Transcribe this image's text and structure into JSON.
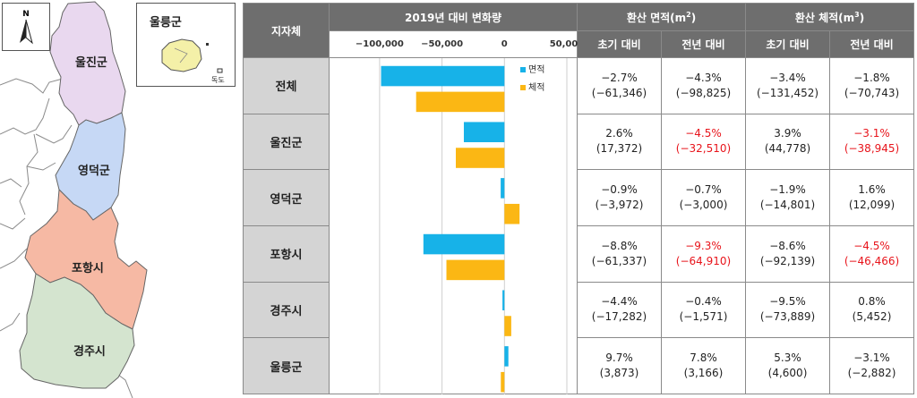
{
  "map": {
    "inset_title": "울릉군",
    "dokdo_label": "독도",
    "north_label": "N",
    "regions": [
      {
        "name": "울진군",
        "color": "#e9d8ef"
      },
      {
        "name": "영덕군",
        "color": "#c6d8f5"
      },
      {
        "name": "포항시",
        "color": "#f6b9a4"
      },
      {
        "name": "경주시",
        "color": "#d4e4cf"
      }
    ],
    "ulleung_color": "#f4f0a8"
  },
  "table": {
    "header": {
      "region": "지자체",
      "change_title": "2019년 대비 변화량",
      "area_title": "환산 면적(m",
      "area_sup": "2",
      "volume_title": "환산 체적(m",
      "volume_sup": "3",
      "area_initial": "초기 대비",
      "area_prev": "전년 대비",
      "volume_initial": "초기 대비",
      "volume_prev": "전년 대비"
    },
    "rows": [
      {
        "region": "전체",
        "area_initial_pct": "−2.7%",
        "area_initial_val": "(−61,346)",
        "area_prev_pct": "−4.3%",
        "area_prev_val": "(−98,825)",
        "volume_initial_pct": "−3.4%",
        "volume_initial_val": "(−131,452)",
        "volume_prev_pct": "−1.8%",
        "volume_prev_val": "(−70,743)"
      },
      {
        "region": "울진군",
        "area_initial_pct": "2.6%",
        "area_initial_val": "(17,372)",
        "area_prev_pct": "−4.5%",
        "area_prev_val": "(−32,510)",
        "volume_initial_pct": "3.9%",
        "volume_initial_val": "(44,778)",
        "volume_prev_pct": "−3.1%",
        "volume_prev_val": "(−38,945)"
      },
      {
        "region": "영덕군",
        "area_initial_pct": "−0.9%",
        "area_initial_val": "(−3,972)",
        "area_prev_pct": "−0.7%",
        "area_prev_val": "(−3,000)",
        "volume_initial_pct": "−1.9%",
        "volume_initial_val": "(−14,801)",
        "volume_prev_pct": "1.6%",
        "volume_prev_val": "(12,099)"
      },
      {
        "region": "포항시",
        "area_initial_pct": "−8.8%",
        "area_initial_val": "(−61,337)",
        "area_prev_pct": "−9.3%",
        "area_prev_val": "(−64,910)",
        "volume_initial_pct": "−8.6%",
        "volume_initial_val": "(−92,139)",
        "volume_prev_pct": "−4.5%",
        "volume_prev_val": "(−46,466)"
      },
      {
        "region": "경주시",
        "area_initial_pct": "−4.4%",
        "area_initial_val": "(−17,282)",
        "area_prev_pct": "−0.4%",
        "area_prev_val": "(−1,571)",
        "volume_initial_pct": "−9.5%",
        "volume_initial_val": "(−73,889)",
        "volume_prev_pct": "0.8%",
        "volume_prev_val": "(5,452)"
      },
      {
        "region": "울릉군",
        "area_initial_pct": "9.7%",
        "area_initial_val": "(3,873)",
        "area_prev_pct": "7.8%",
        "area_prev_val": "(3,166)",
        "volume_initial_pct": "5.3%",
        "volume_initial_val": "(4,600)",
        "volume_prev_pct": "−3.1%",
        "volume_prev_val": "(−2,882)"
      }
    ]
  },
  "highlight_color": "#e8141b",
  "chart_data": {
    "type": "bar",
    "orientation": "horizontal",
    "title": "2019년 대비 변화량",
    "categories": [
      "전체",
      "울진군",
      "영덕군",
      "포항시",
      "경주시",
      "울릉군"
    ],
    "series": [
      {
        "name": "면적",
        "color": "#17b2e8",
        "values": [
          -98825,
          -32510,
          -3000,
          -64910,
          -1571,
          3166
        ]
      },
      {
        "name": "체적",
        "color": "#fbb714",
        "values": [
          -70743,
          -38945,
          12099,
          -46466,
          5452,
          -2882
        ]
      }
    ],
    "xlim": [
      -120000,
      50000
    ],
    "ticks": [
      -100000,
      -50000,
      0,
      50000
    ],
    "tick_labels": [
      "−100,000",
      "−50,000",
      "0",
      "50,000"
    ],
    "grid": true,
    "legend": "top-right"
  }
}
